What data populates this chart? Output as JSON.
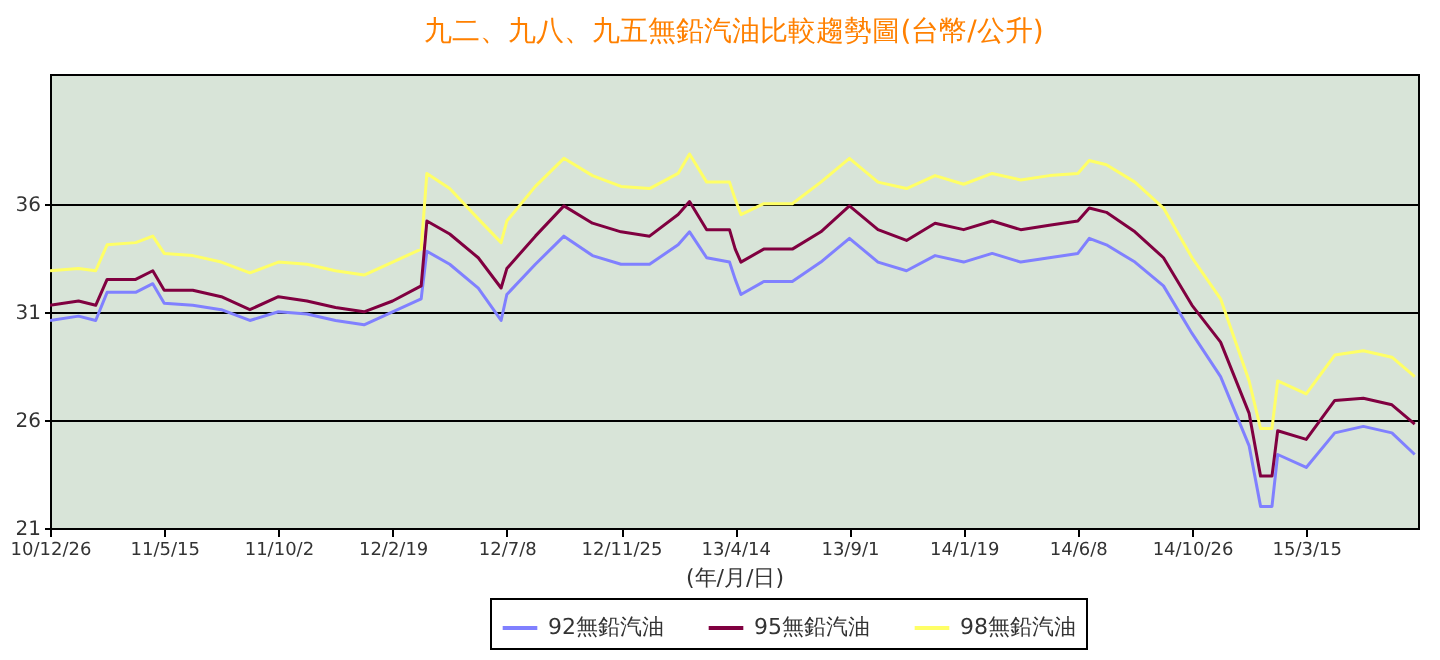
{
  "chart_data": {
    "type": "line",
    "title": "九二、九八、九五無鉛汽油比較趨勢圖(台幣/公升)",
    "xlabel": "(年/月/日)",
    "x": [
      "2010-12-26",
      "2011-01-30",
      "2011-02-20",
      "2011-03-06",
      "2011-04-10",
      "2011-05-01",
      "2011-05-15",
      "2011-06-19",
      "2011-07-24",
      "2011-08-28",
      "2011-10-02",
      "2011-11-06",
      "2011-12-11",
      "2012-01-15",
      "2012-02-19",
      "2012-03-25",
      "2012-04-01",
      "2012-04-29",
      "2012-06-03",
      "2012-07-01",
      "2012-07-08",
      "2012-08-12",
      "2012-09-16",
      "2012-10-21",
      "2012-11-25",
      "2012-12-30",
      "2013-02-03",
      "2013-02-17",
      "2013-03-10",
      "2013-04-07",
      "2013-04-14",
      "2013-04-21",
      "2013-05-19",
      "2013-06-23",
      "2013-07-28",
      "2013-09-01",
      "2013-10-06",
      "2013-11-10",
      "2013-12-15",
      "2014-01-19",
      "2014-02-23",
      "2014-03-30",
      "2014-05-04",
      "2014-06-08",
      "2014-06-22",
      "2014-07-13",
      "2014-08-17",
      "2014-09-21",
      "2014-10-26",
      "2014-11-30",
      "2015-01-04",
      "2015-01-18",
      "2015-02-01",
      "2015-02-08",
      "2015-03-15",
      "2015-04-19",
      "2015-05-24",
      "2015-06-28",
      "2015-07-26"
    ],
    "series": [
      {
        "name": "92無鉛汽油",
        "color": "#8080ff",
        "values": [
          30.6,
          30.8,
          30.6,
          31.9,
          31.9,
          32.3,
          31.4,
          31.3,
          31.1,
          30.6,
          31.0,
          30.9,
          30.6,
          30.4,
          31.0,
          31.6,
          33.8,
          33.2,
          32.1,
          30.6,
          31.8,
          33.2,
          34.5,
          33.6,
          33.2,
          33.2,
          34.1,
          34.7,
          33.5,
          33.3,
          32.5,
          31.8,
          32.4,
          32.4,
          33.3,
          34.4,
          33.3,
          32.9,
          33.6,
          33.3,
          33.7,
          33.3,
          33.5,
          33.7,
          34.4,
          34.1,
          33.3,
          32.2,
          30.0,
          28.0,
          24.8,
          22.0,
          22.0,
          24.4,
          23.8,
          25.4,
          25.7,
          25.4,
          24.4
        ]
      },
      {
        "name": "95無鉛汽油",
        "color": "#800040",
        "values": [
          31.3,
          31.5,
          31.3,
          32.5,
          32.5,
          32.9,
          32.0,
          32.0,
          31.7,
          31.1,
          31.7,
          31.5,
          31.2,
          31.0,
          31.5,
          32.2,
          35.2,
          34.6,
          33.5,
          32.1,
          33.0,
          34.5,
          35.9,
          35.1,
          34.7,
          34.5,
          35.5,
          36.1,
          34.8,
          34.8,
          33.9,
          33.3,
          33.9,
          33.9,
          34.7,
          35.9,
          34.8,
          34.3,
          35.1,
          34.8,
          35.2,
          34.8,
          35.0,
          35.2,
          35.8,
          35.6,
          34.7,
          33.5,
          31.3,
          29.6,
          26.3,
          23.4,
          23.4,
          25.5,
          25.1,
          26.9,
          27.0,
          26.7,
          25.8
        ]
      },
      {
        "name": "98無鉛汽油",
        "color": "#ffff66",
        "values": [
          32.9,
          33.0,
          32.9,
          34.1,
          34.2,
          34.5,
          33.7,
          33.6,
          33.3,
          32.8,
          33.3,
          33.2,
          32.9,
          32.7,
          33.3,
          33.9,
          37.4,
          36.7,
          35.3,
          34.2,
          35.2,
          36.8,
          38.1,
          37.3,
          36.8,
          36.7,
          37.4,
          38.3,
          37.0,
          37.0,
          36.2,
          35.5,
          36.0,
          36.0,
          37.0,
          38.1,
          37.0,
          36.7,
          37.3,
          36.9,
          37.4,
          37.1,
          37.3,
          37.4,
          38.0,
          37.8,
          37.0,
          35.8,
          33.5,
          31.6,
          27.8,
          25.6,
          25.6,
          27.8,
          27.2,
          29.0,
          29.2,
          28.9,
          28.0
        ]
      }
    ],
    "xlim": [
      "2010-12-26",
      "2015-07-30"
    ],
    "xticks": [
      {
        "value": "2010-12-26",
        "label": "10/12/26"
      },
      {
        "value": "2011-05-15",
        "label": "11/5/15"
      },
      {
        "value": "2011-10-02",
        "label": "11/10/2"
      },
      {
        "value": "2012-02-19",
        "label": "12/2/19"
      },
      {
        "value": "2012-07-08",
        "label": "12/7/8"
      },
      {
        "value": "2012-11-25",
        "label": "12/11/25"
      },
      {
        "value": "2013-04-14",
        "label": "13/4/14"
      },
      {
        "value": "2013-09-01",
        "label": "13/9/1"
      },
      {
        "value": "2014-01-19",
        "label": "14/1/19"
      },
      {
        "value": "2014-06-08",
        "label": "14/6/8"
      },
      {
        "value": "2014-10-26",
        "label": "14/10/26"
      },
      {
        "value": "2015-03-15",
        "label": "15/3/15"
      }
    ],
    "ylim": [
      21,
      42
    ],
    "yticks": [
      21,
      26,
      31,
      36
    ],
    "grid": "y",
    "legend": "bottom"
  }
}
